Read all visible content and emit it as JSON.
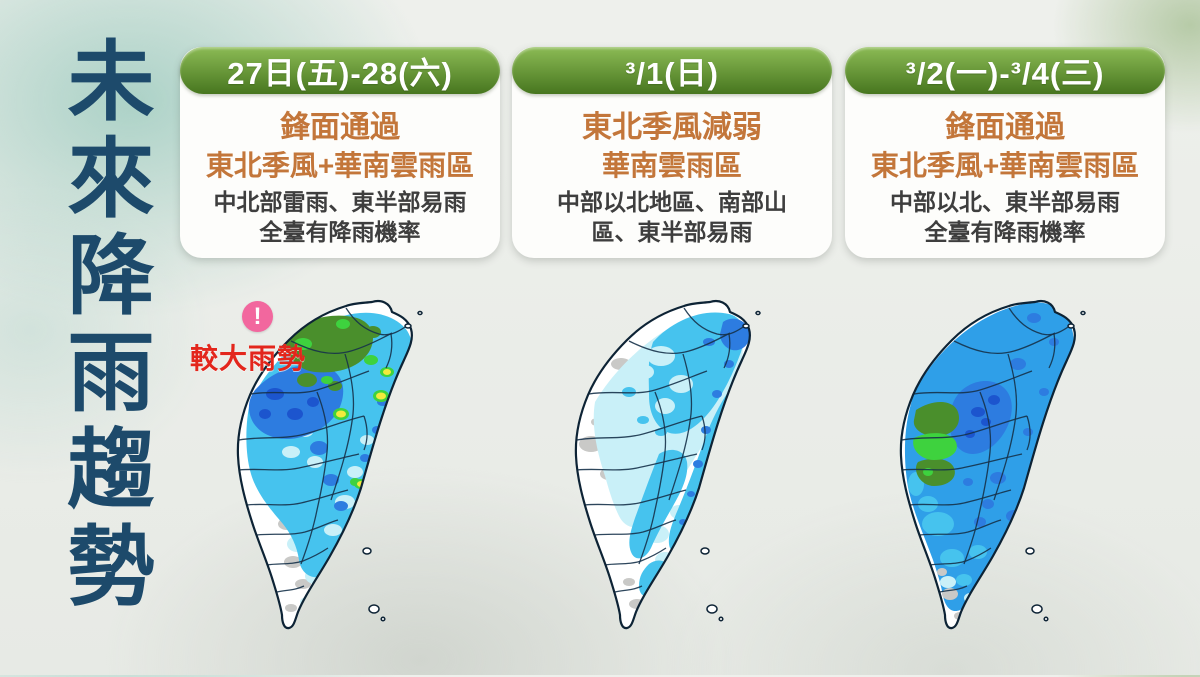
{
  "page": {
    "title": "未來降雨趨勢"
  },
  "colors": {
    "title_navy": "#1d4a6b",
    "card_bg": "#fdfdfb",
    "header_text": "#ffffff",
    "header_grad_top": "#8cbb55",
    "header_grad_bottom": "#47761f",
    "headline_orange": "#c3763a",
    "detail_gray": "#3e3e3e",
    "warning_red": "#e3261c",
    "warning_pink": "#f2679e"
  },
  "rain_colors": {
    "none": "#ffffff",
    "terrain": "#c9c9c7",
    "light": "#c9f0f8",
    "moderate": "#46c3ee",
    "moderate_heavy": "#2f9fe8",
    "heavy": "#2d7ce0",
    "very_heavy": "#1c55ce",
    "extreme": "#4a8f2c",
    "extreme_bright": "#3ed23e",
    "torrential": "#f2ea3d",
    "coastline": "#0d2335",
    "county_border": "#16324a"
  },
  "panels": [
    {
      "date": "27日(五)-28(六)",
      "headlines": [
        "鋒面通過",
        "東北季風+華南雲雨區"
      ],
      "details": [
        "中北部雷雨、東半部易雨",
        "全臺有降雨機率"
      ],
      "warning": {
        "icon_glyph": "!",
        "label": "較大雨勢"
      },
      "map": {
        "base": "none",
        "rain_levels": [
          "terrain",
          "light",
          "moderate",
          "heavy",
          "very_heavy",
          "extreme",
          "extreme_bright",
          "torrential"
        ]
      }
    },
    {
      "date": "³/1(日)",
      "headlines": [
        "東北季風減弱",
        "華南雲雨區"
      ],
      "details": [
        "中部以北地區、南部山",
        "區、東半部易雨"
      ],
      "map": {
        "base": "none",
        "rain_levels": [
          "terrain",
          "light",
          "moderate",
          "heavy"
        ]
      }
    },
    {
      "date": "³/2(一)-³/4(三)",
      "headlines": [
        "鋒面通過",
        "東北季風+華南雲雨區"
      ],
      "details": [
        "中部以北、東半部易雨",
        "全臺有降雨機率"
      ],
      "map": {
        "base": "none",
        "rain_levels": [
          "terrain",
          "light",
          "moderate",
          "moderate_heavy",
          "heavy",
          "very_heavy",
          "extreme",
          "extreme_bright"
        ]
      }
    }
  ]
}
